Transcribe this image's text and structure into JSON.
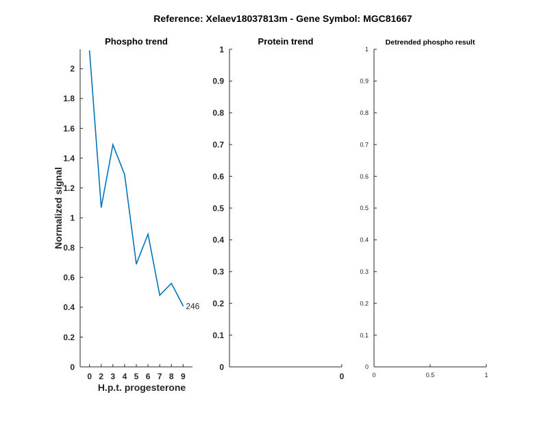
{
  "suptitle": "Reference:  Xelaev18037813m - Gene Symbol:  MGC81667",
  "chart_data": [
    {
      "type": "line",
      "title": "Phospho trend",
      "xlabel": "H.p.t. progesterone",
      "ylabel": "Normalized signal",
      "x": [
        0,
        1,
        2,
        3,
        4,
        5,
        6,
        7,
        8
      ],
      "xticklabels": [
        "0",
        "2",
        "3",
        "4",
        "5",
        "6",
        "7",
        "8",
        "9"
      ],
      "yticks": [
        0,
        0.2,
        0.4,
        0.6,
        0.8,
        1,
        1.2,
        1.4,
        1.6,
        1.8,
        2
      ],
      "yticklabels": [
        "0",
        "0.2",
        "0.4",
        "0.6",
        "0.8",
        "1",
        "1.2",
        "1.4",
        "1.6",
        "1.8",
        "2"
      ],
      "xlim": [
        -0.8,
        8.8
      ],
      "ylim": [
        0,
        2.13
      ],
      "series": [
        {
          "values": [
            2.12,
            1.07,
            1.49,
            1.29,
            0.69,
            0.89,
            0.48,
            0.56,
            0.41
          ],
          "color": "#0072BD",
          "end_label": "246"
        }
      ]
    },
    {
      "type": "line",
      "title": "Protein trend",
      "xlabel": "",
      "ylabel": "",
      "xticks": [
        0
      ],
      "xticklabels": [
        "0"
      ],
      "yticks": [
        0,
        0.1,
        0.2,
        0.3,
        0.4,
        0.5,
        0.6,
        0.7,
        0.8,
        0.9,
        1
      ],
      "yticklabels": [
        "0",
        "0.1",
        "0.2",
        "0.3",
        "0.4",
        "0.5",
        "0.6",
        "0.7",
        "0.8",
        "0.9",
        "1"
      ],
      "xlim": [
        -1,
        0
      ],
      "ylim": [
        0,
        1
      ],
      "series": []
    },
    {
      "type": "line",
      "title": "Detrended phospho result",
      "xlabel": "",
      "ylabel": "",
      "xticks": [
        0,
        0.5,
        1
      ],
      "xticklabels": [
        "0",
        "0.5",
        "1"
      ],
      "yticks": [
        0,
        0.1,
        0.2,
        0.3,
        0.4,
        0.5,
        0.6,
        0.7,
        0.8,
        0.9,
        1
      ],
      "yticklabels": [
        "0",
        "0.1",
        "0.2",
        "0.3",
        "0.4",
        "0.5",
        "0.6",
        "0.7",
        "0.8",
        "0.9",
        "1"
      ],
      "xlim": [
        0,
        1
      ],
      "ylim": [
        0,
        1
      ],
      "series": []
    }
  ]
}
